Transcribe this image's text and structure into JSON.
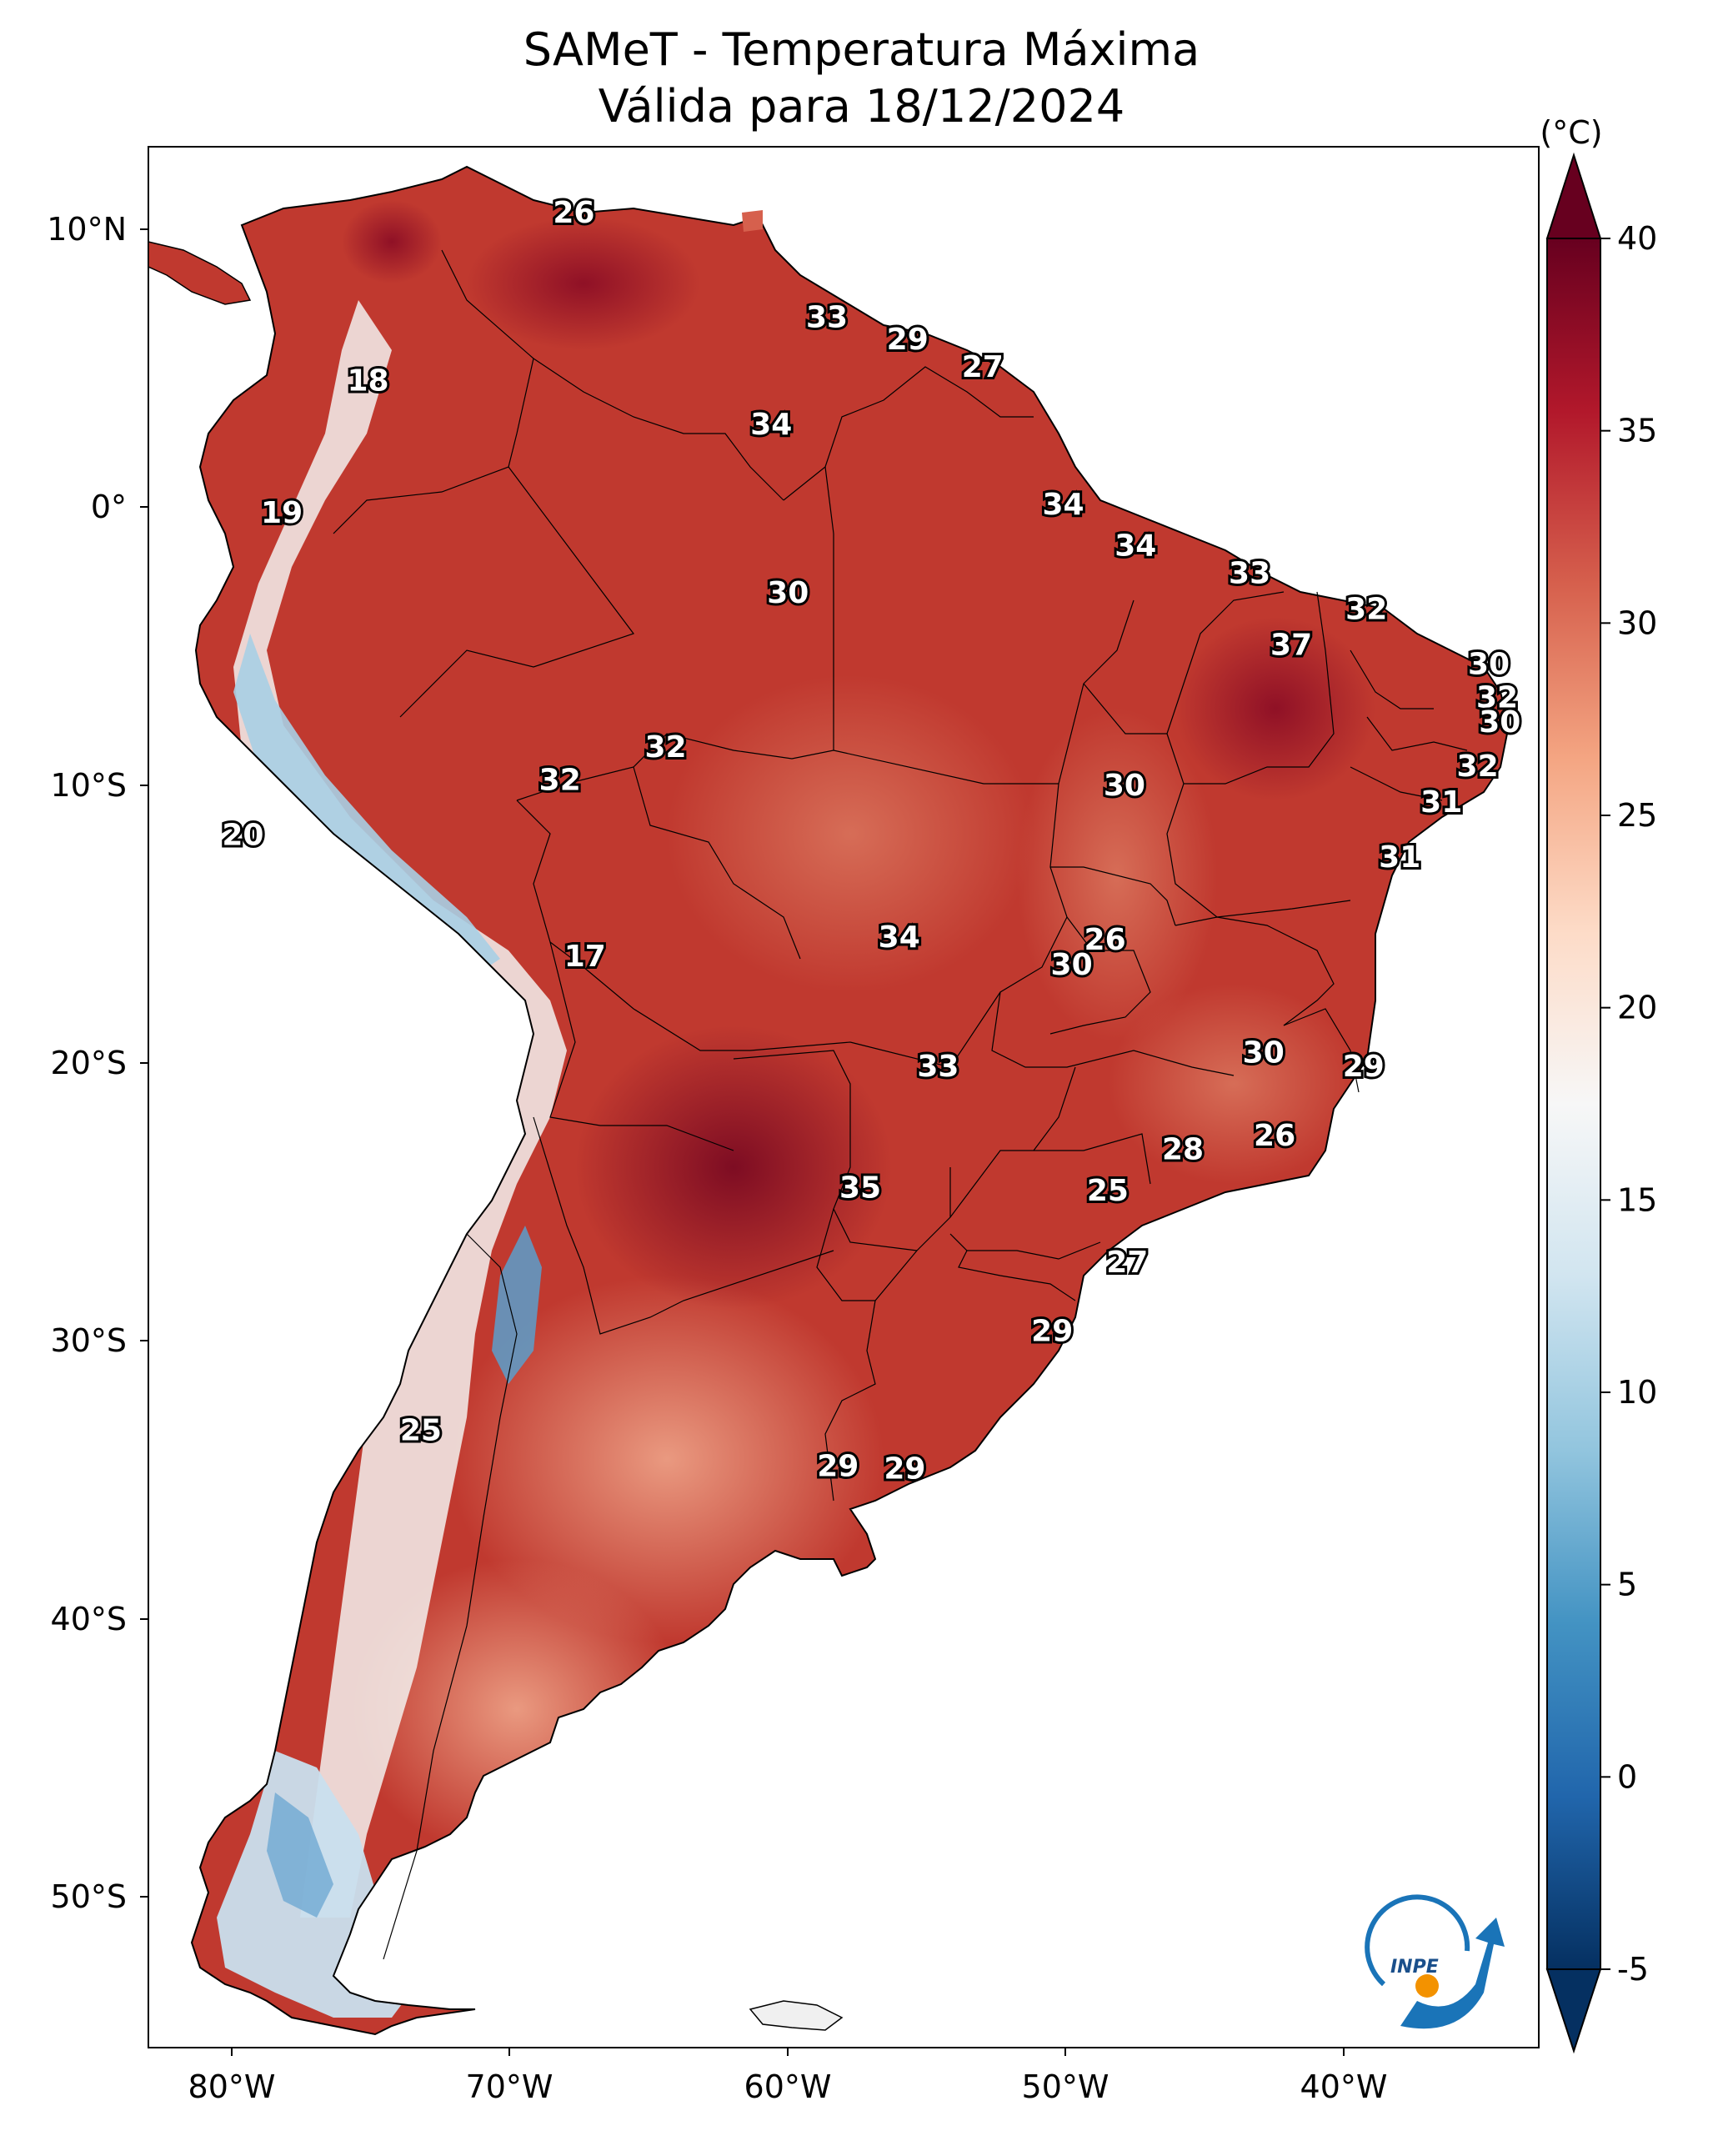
{
  "title": "SAMeT - Temperatura Máxima",
  "subtitle": "Válida para 18/12/2024",
  "colorbar": {
    "unit": "(°C)",
    "min": -5,
    "max": 40,
    "ticks": [
      "40",
      "35",
      "30",
      "25",
      "20",
      "15",
      "10",
      "5",
      "0",
      "-5"
    ],
    "colors": [
      "#053061",
      "#2166ac",
      "#4393c3",
      "#92c5de",
      "#d1e5f0",
      "#f7f7f7",
      "#fddbc7",
      "#f4a582",
      "#d6604d",
      "#b2182b",
      "#67001f"
    ]
  },
  "axes": {
    "lon_ticks": [
      "80°W",
      "70°W",
      "60°W",
      "50°W",
      "40°W"
    ],
    "lat_ticks": [
      "10°N",
      "0°",
      "10°S",
      "20°S",
      "30°S",
      "40°S",
      "50°S"
    ],
    "extent": {
      "lon": [
        -83,
        -33
      ],
      "lat": [
        -56,
        13
      ]
    }
  },
  "map": {
    "region": "South America",
    "labels": [
      {
        "text": "26",
        "lon": -67.7,
        "lat": 10.6
      },
      {
        "text": "18",
        "lon": -75.1,
        "lat": 4.5
      },
      {
        "text": "19",
        "lon": -78.2,
        "lat": -0.3
      },
      {
        "text": "33",
        "lon": -58.6,
        "lat": 6.8
      },
      {
        "text": "29",
        "lon": -55.7,
        "lat": 6.0
      },
      {
        "text": "27",
        "lon": -53.0,
        "lat": 5.0
      },
      {
        "text": "34",
        "lon": -60.6,
        "lat": 2.9
      },
      {
        "text": "34",
        "lon": -50.1,
        "lat": 0.0
      },
      {
        "text": "34",
        "lon": -47.5,
        "lat": -1.5
      },
      {
        "text": "33",
        "lon": -43.4,
        "lat": -2.5
      },
      {
        "text": "30",
        "lon": -60.0,
        "lat": -3.2
      },
      {
        "text": "32",
        "lon": -39.2,
        "lat": -3.8
      },
      {
        "text": "37",
        "lon": -41.9,
        "lat": -5.1
      },
      {
        "text": "30",
        "lon": -34.8,
        "lat": -5.8
      },
      {
        "text": "32",
        "lon": -34.5,
        "lat": -7.0
      },
      {
        "text": "30",
        "lon": -34.4,
        "lat": -7.9
      },
      {
        "text": "32",
        "lon": -64.4,
        "lat": -8.8
      },
      {
        "text": "32",
        "lon": -68.2,
        "lat": -10.0
      },
      {
        "text": "30",
        "lon": -47.9,
        "lat": -10.2
      },
      {
        "text": "32",
        "lon": -35.2,
        "lat": -9.5
      },
      {
        "text": "31",
        "lon": -36.5,
        "lat": -10.8
      },
      {
        "text": "20",
        "lon": -79.6,
        "lat": -12.0
      },
      {
        "text": "31",
        "lon": -38.0,
        "lat": -12.8
      },
      {
        "text": "34",
        "lon": -56.0,
        "lat": -15.7
      },
      {
        "text": "26",
        "lon": -48.6,
        "lat": -15.8
      },
      {
        "text": "30",
        "lon": -49.8,
        "lat": -16.7
      },
      {
        "text": "17",
        "lon": -67.3,
        "lat": -16.4
      },
      {
        "text": "30",
        "lon": -42.9,
        "lat": -19.9
      },
      {
        "text": "29",
        "lon": -39.3,
        "lat": -20.4
      },
      {
        "text": "33",
        "lon": -54.6,
        "lat": -20.4
      },
      {
        "text": "26",
        "lon": -42.5,
        "lat": -22.9
      },
      {
        "text": "28",
        "lon": -45.8,
        "lat": -23.4
      },
      {
        "text": "35",
        "lon": -57.4,
        "lat": -24.8
      },
      {
        "text": "25",
        "lon": -48.5,
        "lat": -24.9
      },
      {
        "text": "27",
        "lon": -47.8,
        "lat": -27.5
      },
      {
        "text": "29",
        "lon": -50.5,
        "lat": -30.0
      },
      {
        "text": "25",
        "lon": -73.2,
        "lat": -33.6
      },
      {
        "text": "29",
        "lon": -58.2,
        "lat": -34.9
      },
      {
        "text": "29",
        "lon": -55.8,
        "lat": -35.0
      }
    ]
  },
  "logo": {
    "text": "INPE"
  }
}
